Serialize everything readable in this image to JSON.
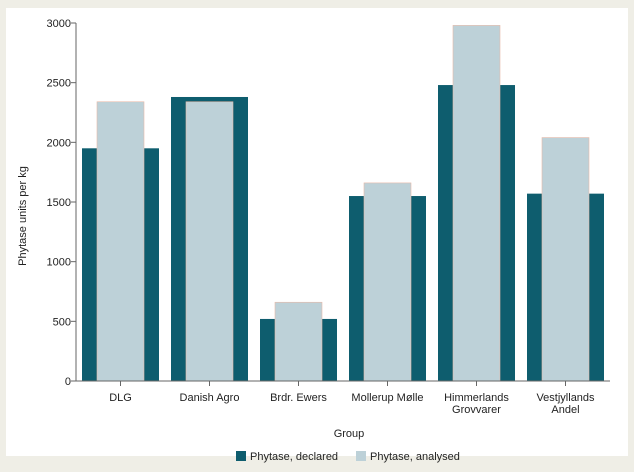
{
  "chart_data": {
    "type": "bar",
    "title": "",
    "xlabel": "Group",
    "ylabel": "Phytase units per kg",
    "ylim": [
      0,
      3000
    ],
    "yticks": [
      0,
      500,
      1000,
      1500,
      2000,
      2500,
      3000
    ],
    "grid": false,
    "legend_position": "bottom",
    "categories": [
      [
        "DLG"
      ],
      [
        "Danish Agro"
      ],
      [
        "Brdr. Ewers"
      ],
      [
        "Mollerup Mølle"
      ],
      [
        "Himmerlands",
        "Grovvarer"
      ],
      [
        "Vestjyllands",
        "Andel"
      ]
    ],
    "series": [
      {
        "name": "Phytase, declared",
        "color": "#0e5d6e",
        "values": [
          1950,
          2380,
          520,
          1550,
          2480,
          1570
        ]
      },
      {
        "name": "Phytase, analysed",
        "color": "#bdd1d8",
        "values": [
          2340,
          2340,
          660,
          1660,
          2980,
          2040
        ]
      }
    ]
  }
}
